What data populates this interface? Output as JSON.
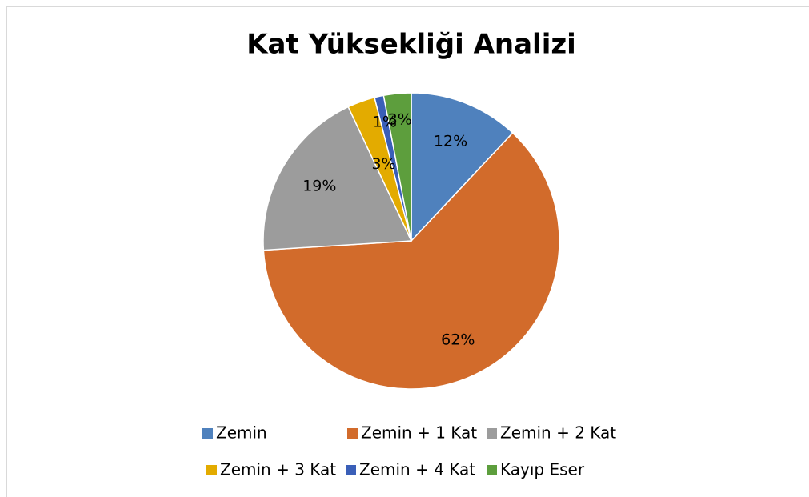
{
  "chart_data": {
    "type": "pie",
    "title": "Kat Yüksekliği Analizi",
    "categories": [
      "Zemin",
      "Zemin + 1 Kat",
      "Zemin + 2 Kat",
      "Zemin + 3 Kat",
      "Zemin + 4 Kat",
      "Kayıp Eser"
    ],
    "values": [
      12,
      62,
      19,
      3,
      1,
      3
    ],
    "value_labels": [
      "12%",
      "62%",
      "19%",
      "3%",
      "1%",
      "3%"
    ],
    "colors": [
      "#4f81bd",
      "#d26b2b",
      "#9c9c9c",
      "#e3ab00",
      "#3a5fb8",
      "#5d9e3d"
    ],
    "legend": "bottom"
  }
}
